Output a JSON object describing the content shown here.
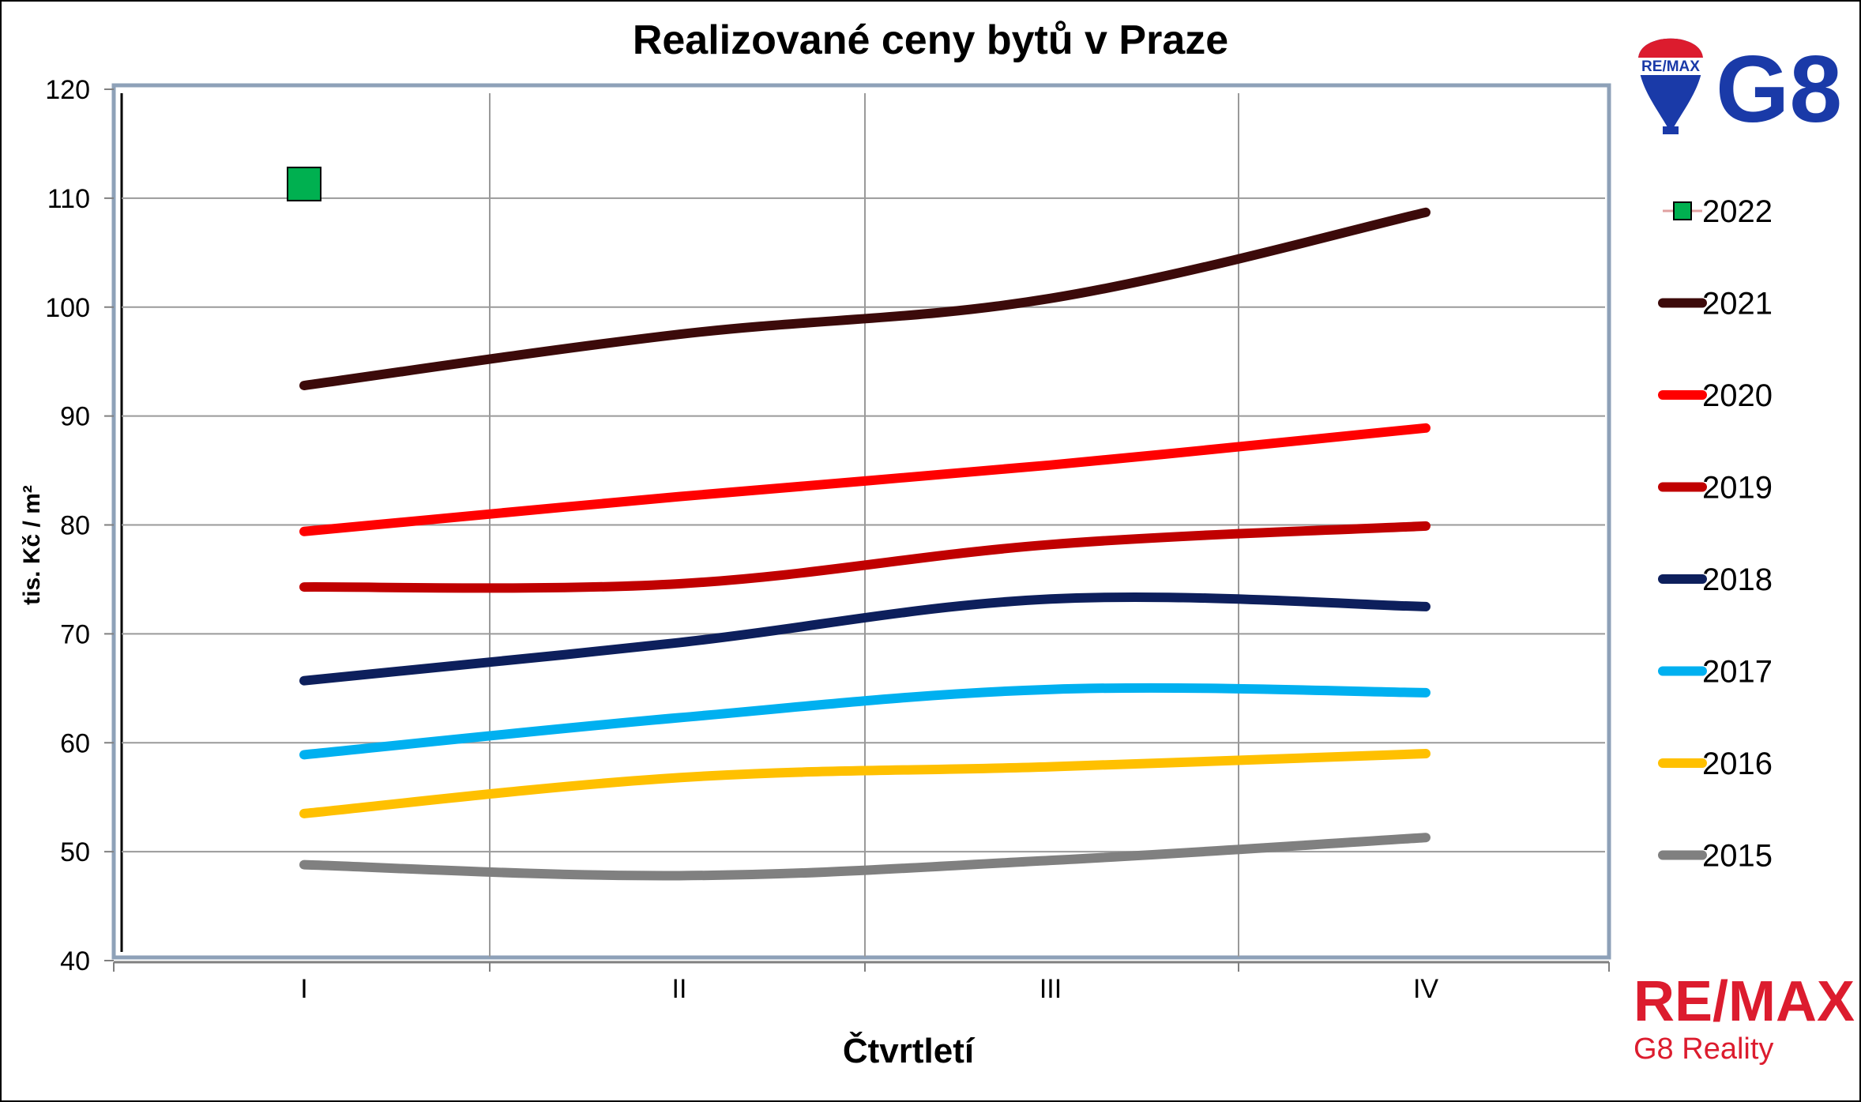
{
  "chart_data": {
    "type": "line",
    "title": "Realizované ceny bytů v Praze",
    "xlabel": "Čtvrtletí",
    "ylabel": "tis. Kč / m²",
    "categories": [
      "I",
      "II",
      "III",
      "IV"
    ],
    "ylim": [
      40,
      120
    ],
    "yticks": [
      40,
      50,
      60,
      70,
      80,
      90,
      100,
      110,
      120
    ],
    "grid": true,
    "legend_position": "right",
    "series": [
      {
        "name": "2022",
        "color": "#00b050",
        "marker": "square",
        "values": [
          111.3,
          null,
          null,
          null
        ]
      },
      {
        "name": "2021",
        "color": "#3c0a0a",
        "values": [
          92.8,
          97.5,
          100.8,
          108.7
        ]
      },
      {
        "name": "2020",
        "color": "#ff0000",
        "values": [
          79.4,
          82.6,
          85.5,
          88.9
        ]
      },
      {
        "name": "2019",
        "color": "#c00000",
        "values": [
          74.3,
          74.6,
          78.2,
          79.9
        ]
      },
      {
        "name": "2018",
        "color": "#0d1f5c",
        "values": [
          65.7,
          69.2,
          73.2,
          72.5
        ]
      },
      {
        "name": "2017",
        "color": "#00b0f0",
        "values": [
          58.9,
          62.3,
          64.9,
          64.6
        ]
      },
      {
        "name": "2016",
        "color": "#ffc000",
        "values": [
          53.5,
          56.8,
          57.8,
          59.0
        ]
      },
      {
        "name": "2015",
        "color": "#808080",
        "values": [
          48.8,
          47.8,
          49.2,
          51.3
        ]
      }
    ]
  },
  "branding": {
    "remax_text": "RE/MAX",
    "g8_text": "G8",
    "reality_text": "G8 Reality",
    "balloon_text": "RE/MAX"
  }
}
